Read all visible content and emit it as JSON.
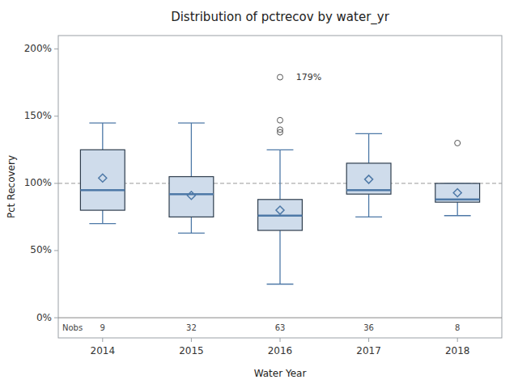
{
  "chart_data": {
    "type": "box",
    "title": "Distribution of pctrecov by water_yr",
    "xlabel": "Water Year",
    "ylabel": "Pct Recovery",
    "categories": [
      "2014",
      "2015",
      "2016",
      "2017",
      "2018"
    ],
    "q1": [
      80,
      75,
      65,
      92,
      86
    ],
    "median": [
      95,
      92,
      76,
      95,
      88
    ],
    "q3": [
      125,
      105,
      88,
      115,
      100
    ],
    "mean": [
      104,
      91,
      80,
      103,
      93
    ],
    "whisker_low": [
      70,
      63,
      25,
      75,
      76
    ],
    "whisker_high": [
      145,
      145,
      125,
      137,
      100
    ],
    "outliers": [
      [],
      [],
      [
        140,
        138,
        147,
        179
      ],
      [],
      [
        130
      ]
    ],
    "nobs_label": "Nobs",
    "nobs": [
      9,
      32,
      63,
      36,
      8
    ],
    "annotations": [
      {
        "x": "2016",
        "y": 179,
        "text": "179%"
      }
    ],
    "reference_line": 100,
    "ylim": [
      -15,
      210
    ],
    "yticks": [
      {
        "value": 0,
        "label": "0%"
      },
      {
        "value": 50,
        "label": "50%"
      },
      {
        "value": 100,
        "label": "100%"
      },
      {
        "value": 150,
        "label": "150%"
      },
      {
        "value": 200,
        "label": "200%"
      }
    ],
    "grid": false
  }
}
